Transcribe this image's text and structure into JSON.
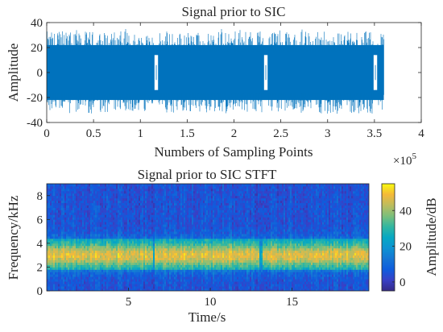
{
  "chart_data": [
    {
      "type": "line",
      "title": "Signal prior to SIC",
      "xlabel": "Numbers of Sampling Points",
      "ylabel": "Amplitude",
      "x_exponent_label": "×10",
      "x_exponent_power": "5",
      "xlim": [
        0,
        400000
      ],
      "ylim": [
        -40,
        40
      ],
      "xticks": [
        0,
        0.5,
        1,
        1.5,
        2,
        2.5,
        3,
        3.5,
        4
      ],
      "yticks": [
        -40,
        -20,
        0,
        20,
        40
      ],
      "line_color": "#0072BD",
      "signal": {
        "x_start": 0,
        "x_end": 360000,
        "typical_envelope": [
          -22,
          22
        ],
        "peak_envelope": [
          -34,
          34
        ],
        "gaps_x": [
          117000,
          234000,
          351000
        ]
      }
    },
    {
      "type": "heatmap",
      "title": "Signal prior to SIC STFT",
      "xlabel": "Time/s",
      "ylabel": "Frequency/kHz",
      "colorbar_label": "Amplitude/dB",
      "xlim": [
        0,
        19.7
      ],
      "ylim": [
        0,
        9
      ],
      "xticks": [
        5,
        10,
        15
      ],
      "yticks": [
        0,
        2,
        4,
        6,
        8
      ],
      "colorbar_range": [
        -5,
        55
      ],
      "colorbar_ticks": [
        0,
        20,
        40
      ],
      "colormap": "parula",
      "band": {
        "freq_center_khz": 3.0,
        "freq_core_halfwidth_khz": 0.9,
        "freq_edge_khz": [
          1.8,
          4.3
        ],
        "peak_db": 47,
        "background_db": 5
      },
      "gaps_time_s": [
        6.55,
        13.1
      ]
    }
  ]
}
